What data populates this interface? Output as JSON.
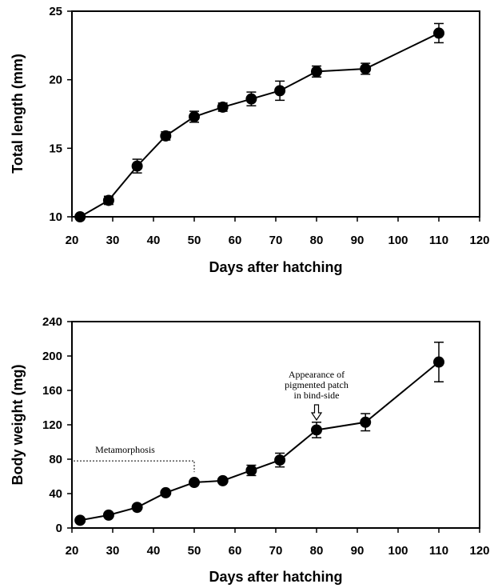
{
  "chart_data": [
    {
      "type": "line",
      "xlabel": "Days after hatching",
      "ylabel": "Total length (mm)",
      "xlim": [
        20,
        120
      ],
      "ylim": [
        10,
        25
      ],
      "xticks": [
        20,
        30,
        40,
        50,
        60,
        70,
        80,
        90,
        100,
        110,
        120
      ],
      "yticks": [
        10,
        15,
        20,
        25
      ],
      "grid": false,
      "series": [
        {
          "x": [
            22,
            29,
            36,
            43,
            50,
            57,
            64,
            71,
            80,
            92,
            110
          ],
          "y": [
            10.0,
            11.2,
            13.7,
            15.9,
            17.3,
            18.0,
            18.6,
            19.2,
            20.6,
            20.8,
            23.4
          ],
          "err": [
            0.0,
            0.3,
            0.5,
            0.3,
            0.4,
            0.3,
            0.5,
            0.7,
            0.4,
            0.4,
            0.7
          ]
        }
      ]
    },
    {
      "type": "line",
      "xlabel": "Days after hatching",
      "ylabel": "Body weight (mg)",
      "xlim": [
        20,
        120
      ],
      "ylim": [
        0,
        240
      ],
      "xticks": [
        20,
        30,
        40,
        50,
        60,
        70,
        80,
        90,
        100,
        110,
        120
      ],
      "yticks": [
        0,
        40,
        80,
        120,
        160,
        200,
        240
      ],
      "grid": false,
      "series": [
        {
          "x": [
            22,
            29,
            36,
            43,
            50,
            57,
            64,
            71,
            80,
            92,
            110
          ],
          "y": [
            9,
            15,
            24,
            41,
            53,
            55,
            67,
            79,
            114,
            123,
            193
          ],
          "err": [
            0,
            0,
            0,
            0,
            0,
            0,
            6,
            8,
            9,
            10,
            23
          ]
        }
      ],
      "annotations": [
        {
          "text": "Metamorphosis",
          "x_start": 20,
          "x_end": 50,
          "y": 78
        },
        {
          "text_lines": [
            "Appearance of",
            "pigmented patch",
            "in bind-side"
          ],
          "arrow_x": 80
        }
      ]
    }
  ]
}
